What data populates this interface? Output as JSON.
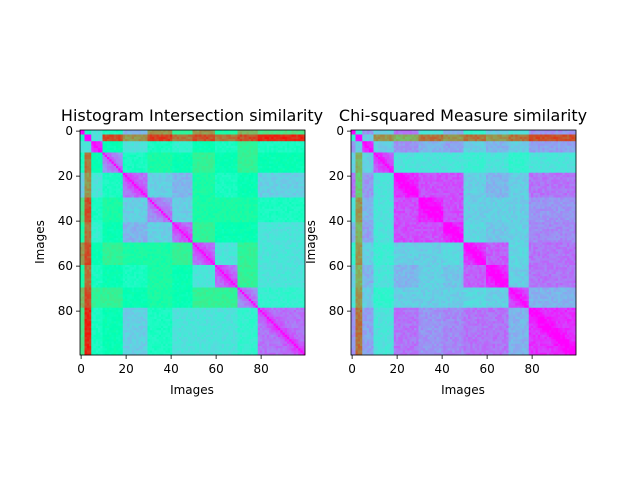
{
  "chart_data": [
    {
      "type": "heatmap",
      "title": "Histogram Intersection similarity",
      "xlabel": "Images",
      "ylabel": "Images",
      "size": 100,
      "xlim": [
        0,
        99
      ],
      "ylim": [
        99,
        0
      ],
      "xticks": [
        0,
        20,
        40,
        60,
        80
      ],
      "yticks": [
        0,
        20,
        40,
        60,
        80
      ],
      "colormap": "rainbow",
      "diagonal_value": 0.0,
      "groups": [
        {
          "range": [
            0,
            1
          ],
          "profile": [
            0.05,
            0.45,
            0.35,
            0.45,
            0.25,
            0.8,
            0.6,
            0.8,
            0.55,
            0.75,
            0.65
          ]
        },
        {
          "range": [
            2,
            4
          ],
          "profile": [
            0.45,
            0.05,
            0.35,
            0.9,
            0.8,
            0.92,
            0.85,
            0.9,
            0.85,
            0.9,
            0.95
          ]
        },
        {
          "range": [
            5,
            9
          ],
          "profile": [
            0.35,
            0.35,
            0.1,
            0.5,
            0.35,
            0.45,
            0.4,
            0.5,
            0.45,
            0.6,
            0.45
          ]
        },
        {
          "range": [
            10,
            18
          ],
          "profile": [
            0.45,
            0.85,
            0.5,
            0.2,
            0.45,
            0.55,
            0.5,
            0.6,
            0.5,
            0.6,
            0.5
          ]
        },
        {
          "range": [
            19,
            29
          ],
          "profile": [
            0.3,
            0.8,
            0.35,
            0.45,
            0.15,
            0.3,
            0.25,
            0.55,
            0.45,
            0.5,
            0.3
          ]
        },
        {
          "range": [
            30,
            40
          ],
          "profile": [
            0.65,
            0.9,
            0.45,
            0.55,
            0.3,
            0.2,
            0.3,
            0.55,
            0.55,
            0.55,
            0.45
          ]
        },
        {
          "range": [
            41,
            49
          ],
          "profile": [
            0.55,
            0.85,
            0.4,
            0.5,
            0.25,
            0.3,
            0.15,
            0.6,
            0.5,
            0.5,
            0.35
          ]
        },
        {
          "range": [
            50,
            59
          ],
          "profile": [
            0.8,
            0.9,
            0.5,
            0.6,
            0.55,
            0.55,
            0.6,
            0.15,
            0.35,
            0.6,
            0.35
          ]
        },
        {
          "range": [
            60,
            69
          ],
          "profile": [
            0.55,
            0.85,
            0.45,
            0.5,
            0.45,
            0.55,
            0.5,
            0.35,
            0.15,
            0.6,
            0.35
          ]
        },
        {
          "range": [
            70,
            78
          ],
          "profile": [
            0.75,
            0.9,
            0.6,
            0.6,
            0.5,
            0.55,
            0.5,
            0.6,
            0.6,
            0.2,
            0.4
          ]
        },
        {
          "range": [
            79,
            99
          ],
          "profile": [
            0.65,
            0.95,
            0.45,
            0.5,
            0.3,
            0.45,
            0.35,
            0.35,
            0.35,
            0.4,
            0.15
          ]
        }
      ]
    },
    {
      "type": "heatmap",
      "title": "Chi-squared Measure similarity",
      "xlabel": "Images",
      "ylabel": "Images",
      "size": 100,
      "xlim": [
        0,
        99
      ],
      "ylim": [
        99,
        0
      ],
      "xticks": [
        0,
        20,
        40,
        60,
        80
      ],
      "yticks": [
        0,
        20,
        40,
        60,
        80
      ],
      "colormap": "rainbow",
      "diagonal_value": 0.0,
      "groups": [
        {
          "range": [
            0,
            1
          ],
          "profile": [
            0.05,
            0.4,
            0.2,
            0.3,
            0.15,
            0.35,
            0.25,
            0.4,
            0.3,
            0.35,
            0.2
          ]
        },
        {
          "range": [
            2,
            4
          ],
          "profile": [
            0.4,
            0.05,
            0.3,
            0.8,
            0.75,
            0.85,
            0.8,
            0.85,
            0.8,
            0.85,
            0.9
          ]
        },
        {
          "range": [
            5,
            9
          ],
          "profile": [
            0.2,
            0.3,
            0.1,
            0.3,
            0.2,
            0.25,
            0.22,
            0.3,
            0.25,
            0.3,
            0.22
          ]
        },
        {
          "range": [
            10,
            18
          ],
          "profile": [
            0.3,
            0.75,
            0.3,
            0.12,
            0.35,
            0.35,
            0.35,
            0.38,
            0.35,
            0.4,
            0.35
          ]
        },
        {
          "range": [
            19,
            29
          ],
          "profile": [
            0.15,
            0.7,
            0.2,
            0.35,
            0.06,
            0.1,
            0.1,
            0.3,
            0.25,
            0.3,
            0.15
          ]
        },
        {
          "range": [
            30,
            40
          ],
          "profile": [
            0.35,
            0.8,
            0.25,
            0.35,
            0.1,
            0.05,
            0.1,
            0.3,
            0.3,
            0.3,
            0.2
          ]
        },
        {
          "range": [
            41,
            49
          ],
          "profile": [
            0.25,
            0.75,
            0.22,
            0.35,
            0.1,
            0.1,
            0.06,
            0.32,
            0.28,
            0.3,
            0.18
          ]
        },
        {
          "range": [
            50,
            59
          ],
          "profile": [
            0.4,
            0.8,
            0.3,
            0.38,
            0.3,
            0.3,
            0.32,
            0.08,
            0.12,
            0.32,
            0.15
          ]
        },
        {
          "range": [
            60,
            69
          ],
          "profile": [
            0.3,
            0.75,
            0.25,
            0.35,
            0.25,
            0.3,
            0.28,
            0.12,
            0.06,
            0.3,
            0.15
          ]
        },
        {
          "range": [
            70,
            78
          ],
          "profile": [
            0.35,
            0.8,
            0.3,
            0.4,
            0.3,
            0.3,
            0.3,
            0.32,
            0.3,
            0.1,
            0.25
          ]
        },
        {
          "range": [
            79,
            99
          ],
          "profile": [
            0.2,
            0.85,
            0.22,
            0.35,
            0.15,
            0.2,
            0.18,
            0.15,
            0.15,
            0.25,
            0.06
          ]
        }
      ]
    }
  ]
}
